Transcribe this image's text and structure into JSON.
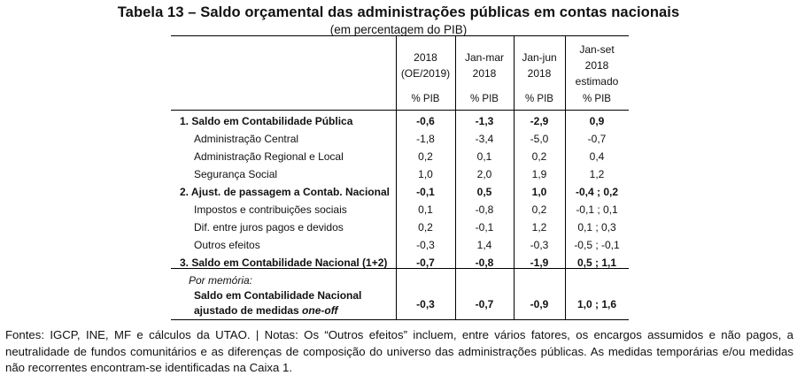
{
  "title": "Tabela 13 – Saldo orçamental das administrações públicas em contas nacionais",
  "subtitle": "(em percentagem do PIB)",
  "columns": [
    {
      "lines": [
        "2018",
        "(OE/2019)"
      ],
      "unit": "% PIB"
    },
    {
      "lines": [
        "Jan-mar",
        "2018"
      ],
      "unit": "% PIB"
    },
    {
      "lines": [
        "Jan-jun",
        "2018"
      ],
      "unit": "% PIB"
    },
    {
      "lines": [
        "Jan-set",
        "2018",
        "estimado"
      ],
      "unit": "% PIB"
    }
  ],
  "rows": [
    {
      "label": "1. Saldo em Contabilidade Pública",
      "bold": true,
      "values": [
        "-0,6",
        "-1,3",
        "-2,9",
        "0,9"
      ]
    },
    {
      "label": "Administração Central",
      "bold": false,
      "values": [
        "-1,8",
        "-3,4",
        "-5,0",
        "-0,7"
      ]
    },
    {
      "label": "Administração Regional e Local",
      "bold": false,
      "values": [
        "0,2",
        "0,1",
        "0,2",
        "0,4"
      ]
    },
    {
      "label": "Segurança Social",
      "bold": false,
      "values": [
        "1,0",
        "2,0",
        "1,9",
        "1,2"
      ]
    },
    {
      "label": "2. Ajust. de passagem a Contab. Nacional",
      "bold": true,
      "values": [
        "-0,1",
        "0,5",
        "1,0",
        "-0,4 ; 0,2"
      ]
    },
    {
      "label": "Impostos e contribuições sociais",
      "bold": false,
      "values": [
        "0,1",
        "-0,8",
        "0,2",
        "-0,1 ; 0,1"
      ]
    },
    {
      "label": "Dif. entre juros pagos e devidos",
      "bold": false,
      "values": [
        "0,2",
        "-0,1",
        "1,2",
        "0,1 ; 0,3"
      ]
    },
    {
      "label": "Outros efeitos",
      "bold": false,
      "values": [
        "-0,3",
        "1,4",
        "-0,3",
        "-0,5 ; -0,1"
      ]
    },
    {
      "label": "3. Saldo em Contabilidade Nacional (1+2)",
      "bold": true,
      "values": [
        "-0,7",
        "-0,8",
        "-1,9",
        "0,5 ; 1,1"
      ]
    }
  ],
  "memo": {
    "heading": "Por memória:",
    "label_line1": "Saldo em Contabilidade Nacional",
    "label_line2_prefix": "ajustado de medidas ",
    "label_line2_italic": "one-off",
    "values": [
      "-0,3",
      "-0,7",
      "-0,9",
      "1,0 ; 1,6"
    ]
  },
  "notes": "Fontes: IGCP, INE, MF e cálculos da UTAO. | Notas: Os “Outros efeitos” incluem, entre vários fatores, os encargos assumidos e não pagos, a neutralidade de fundos comunitários e as diferenças de composição do universo das administrações públicas. As medidas temporárias e/ou medidas não recorrentes encontram-se identificadas na Caixa 1."
}
